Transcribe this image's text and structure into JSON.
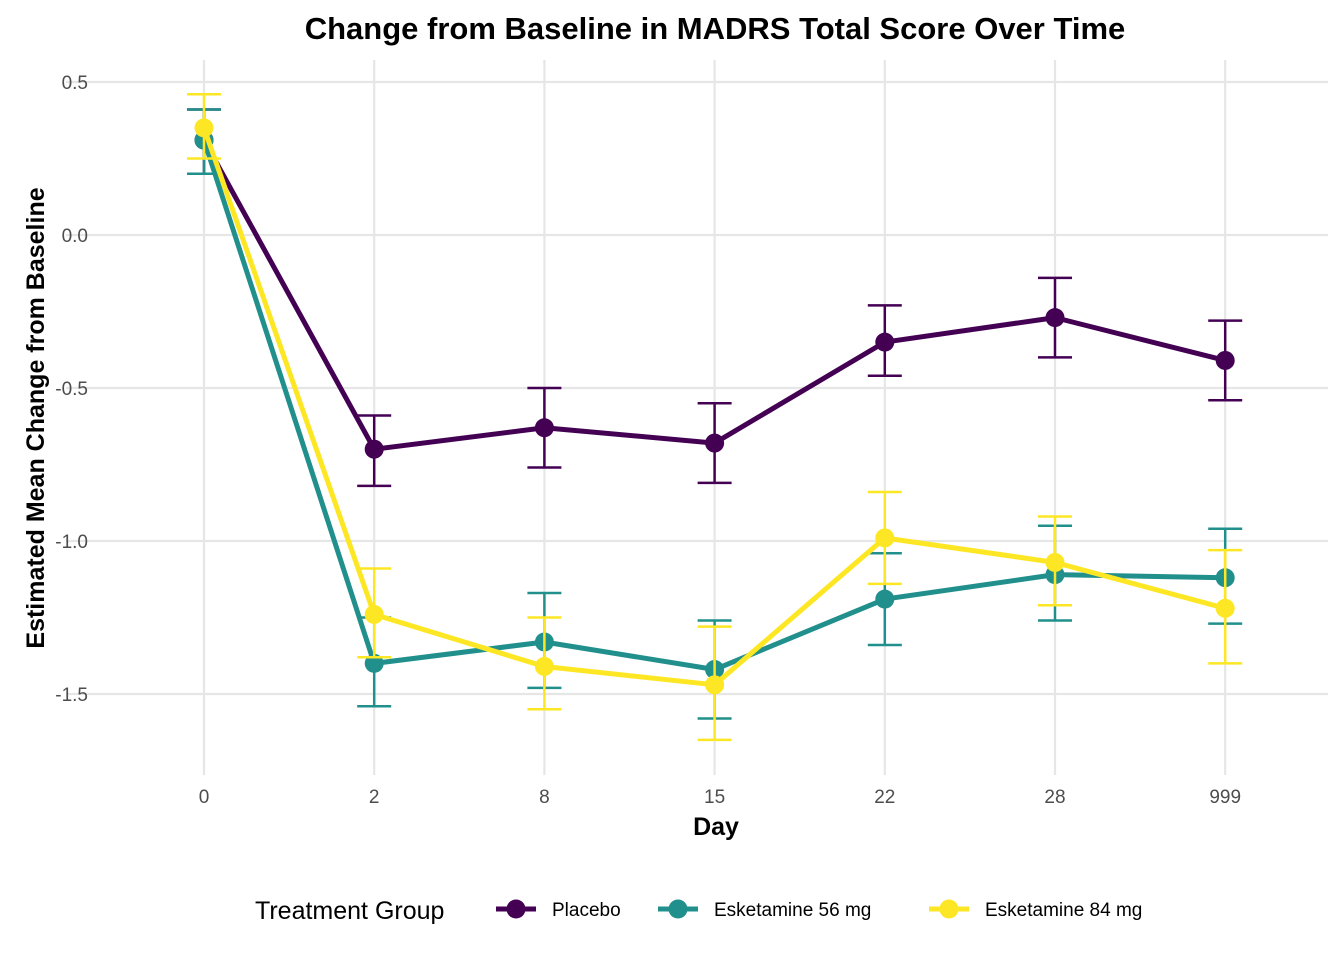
{
  "chart_data": {
    "type": "line",
    "title": "Change from Baseline in MADRS Total Score Over Time",
    "xlabel": "Day",
    "ylabel": "Estimated Mean Change from Baseline",
    "categories": [
      "0",
      "2",
      "8",
      "15",
      "22",
      "28",
      "999"
    ],
    "ylim": [
      -1.74,
      0.55
    ],
    "yticks": [
      "-1.5",
      "-1.0",
      "-0.5",
      "0.0",
      "0.5"
    ],
    "yticks_values": [
      -1.5,
      -1.0,
      -0.5,
      0.0,
      0.5
    ],
    "grid": true,
    "legend": {
      "title": "Treatment Group",
      "position": "bottom"
    },
    "series": [
      {
        "name": "Placebo",
        "color": "#440154",
        "values": [
          0.31,
          -0.7,
          -0.63,
          -0.68,
          -0.35,
          -0.27,
          -0.41
        ],
        "lower": [
          0.2,
          -0.82,
          -0.76,
          -0.81,
          -0.46,
          -0.4,
          -0.54
        ],
        "upper": [
          0.41,
          -0.59,
          -0.5,
          -0.55,
          -0.23,
          -0.14,
          -0.28
        ]
      },
      {
        "name": "Esketamine 56 mg",
        "color": "#21908C",
        "values": [
          0.31,
          -1.4,
          -1.33,
          -1.42,
          -1.19,
          -1.11,
          -1.12
        ],
        "lower": [
          0.2,
          -1.54,
          -1.48,
          -1.58,
          -1.34,
          -1.26,
          -1.27
        ],
        "upper": [
          0.41,
          -1.25,
          -1.17,
          -1.26,
          -1.04,
          -0.95,
          -0.96
        ]
      },
      {
        "name": "Esketamine 84 mg",
        "color": "#FDE725",
        "values": [
          0.35,
          -1.24,
          -1.41,
          -1.47,
          -0.99,
          -1.07,
          -1.22
        ],
        "lower": [
          0.25,
          -1.38,
          -1.55,
          -1.65,
          -1.14,
          -1.21,
          -1.4
        ],
        "upper": [
          0.46,
          -1.09,
          -1.25,
          -1.28,
          -0.84,
          -0.92,
          -1.03
        ]
      }
    ]
  }
}
